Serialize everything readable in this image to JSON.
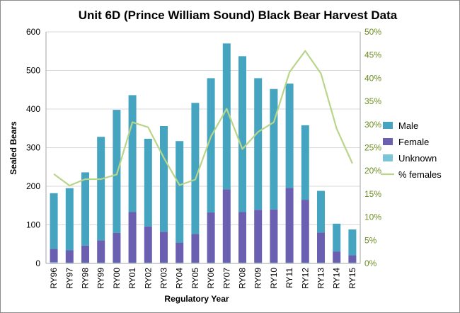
{
  "chart_data": {
    "type": "bar",
    "title": "Unit 6D (Prince William Sound) Black Bear Harvest Data",
    "xlabel": "Regulatory Year",
    "ylabel": "Sealed Bears",
    "categories": [
      "RY96",
      "RY97",
      "RY98",
      "RY99",
      "RY00",
      "RY01",
      "RY02",
      "RY03",
      "RY04",
      "RY05",
      "RY06",
      "RY07",
      "RY08",
      "RY09",
      "RY10",
      "RY11",
      "RY12",
      "RY13",
      "RY14",
      "RY15"
    ],
    "stacked": true,
    "ylim": [
      0,
      600
    ],
    "yticks": [
      0,
      100,
      200,
      300,
      400,
      500,
      600
    ],
    "y2lim": [
      0,
      50
    ],
    "y2ticks": [
      "0%",
      "5%",
      "10%",
      "15%",
      "20%",
      "25%",
      "30%",
      "35%",
      "40%",
      "45%",
      "50%"
    ],
    "grid": true,
    "legend_position": "right",
    "series": [
      {
        "name": "Unknown",
        "kind": "bar",
        "color": "#7cc4d8",
        "values": [
          3,
          2,
          2,
          2,
          2,
          2,
          2,
          2,
          2,
          2,
          2,
          2,
          2,
          2,
          2,
          2,
          2,
          2,
          2,
          2
        ]
      },
      {
        "name": "Female",
        "kind": "bar",
        "color": "#6a5fb0",
        "values": [
          35,
          32,
          44,
          58,
          77,
          131,
          94,
          80,
          52,
          74,
          130,
          190,
          131,
          137,
          138,
          194,
          163,
          78,
          29,
          19
        ]
      },
      {
        "name": "Male",
        "kind": "bar",
        "color": "#45a5c0",
        "values": [
          144,
          161,
          190,
          268,
          319,
          303,
          227,
          274,
          263,
          340,
          348,
          378,
          404,
          341,
          312,
          270,
          193,
          108,
          72,
          67
        ]
      },
      {
        "name": "% females",
        "kind": "line",
        "axis": "right",
        "color": "#b9d58a",
        "values": [
          19.3,
          16.8,
          18.2,
          18.2,
          19.2,
          30.5,
          29.4,
          22.8,
          16.9,
          18.1,
          27.4,
          33.4,
          24.7,
          28.4,
          30.5,
          41.3,
          45.9,
          41.0,
          29.1,
          21.6
        ]
      }
    ]
  }
}
